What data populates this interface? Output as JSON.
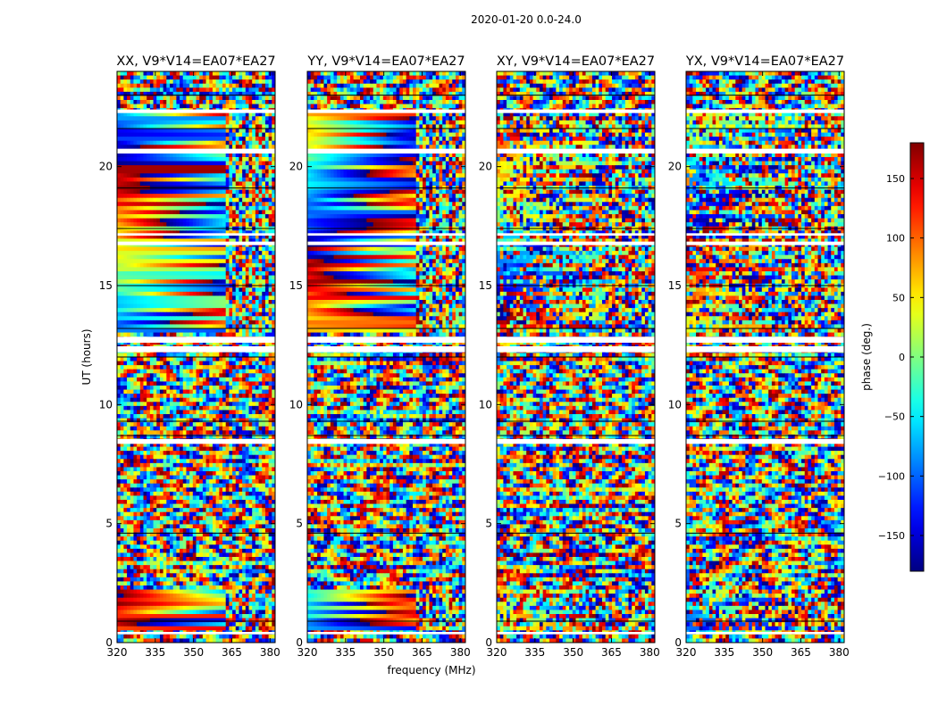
{
  "figure": {
    "suptitle": "2020-01-20 0.0-24.0"
  },
  "chart_data": [
    {
      "type": "heatmap",
      "title": "XX, V9*V14=EA07*EA27",
      "x_range": [
        320,
        382
      ],
      "y_range": [
        0,
        24
      ],
      "x_ticks": [
        "320",
        "335",
        "350",
        "365",
        "380"
      ],
      "y_ticks": [
        "0",
        "5",
        "10",
        "15",
        "20"
      ],
      "ylabel": "UT (hours)",
      "xlabel": ""
    },
    {
      "type": "heatmap",
      "title": "YY, V9*V14=EA07*EA27",
      "x_range": [
        320,
        382
      ],
      "y_range": [
        0,
        24
      ],
      "x_ticks": [
        "320",
        "335",
        "350",
        "365",
        "380"
      ],
      "y_ticks": [
        "0",
        "5",
        "10",
        "15",
        "20"
      ],
      "ylabel": "",
      "xlabel": "frequency (MHz)"
    },
    {
      "type": "heatmap",
      "title": "XY, V9*V14=EA07*EA27",
      "x_range": [
        320,
        382
      ],
      "y_range": [
        0,
        24
      ],
      "x_ticks": [
        "320",
        "335",
        "350",
        "365",
        "380"
      ],
      "y_ticks": [
        "0",
        "5",
        "10",
        "15",
        "20"
      ],
      "ylabel": "",
      "xlabel": ""
    },
    {
      "type": "heatmap",
      "title": "YX, V9*V14=EA07*EA27",
      "x_range": [
        320,
        382
      ],
      "y_range": [
        0,
        24
      ],
      "x_ticks": [
        "320",
        "335",
        "350",
        "365",
        "380"
      ],
      "y_ticks": [
        "0",
        "5",
        "10",
        "15",
        "20"
      ],
      "ylabel": "",
      "xlabel": ""
    }
  ],
  "colorbar": {
    "label": "phase (deg.)",
    "range": [
      -180,
      180
    ],
    "ticks": [
      "150",
      "100",
      "50",
      "0",
      "−50",
      "−100",
      "−150"
    ],
    "tick_values": [
      150,
      100,
      50,
      0,
      -50,
      -100,
      -150
    ],
    "colormap": "jet"
  },
  "flagged_ut_gaps": [
    [
      0.35,
      0.45
    ],
    [
      8.35,
      8.55
    ],
    [
      12.2,
      12.45
    ],
    [
      12.6,
      12.85
    ],
    [
      16.7,
      16.85
    ],
    [
      17.1,
      17.2
    ],
    [
      20.55,
      20.75
    ],
    [
      22.25,
      22.4
    ]
  ]
}
